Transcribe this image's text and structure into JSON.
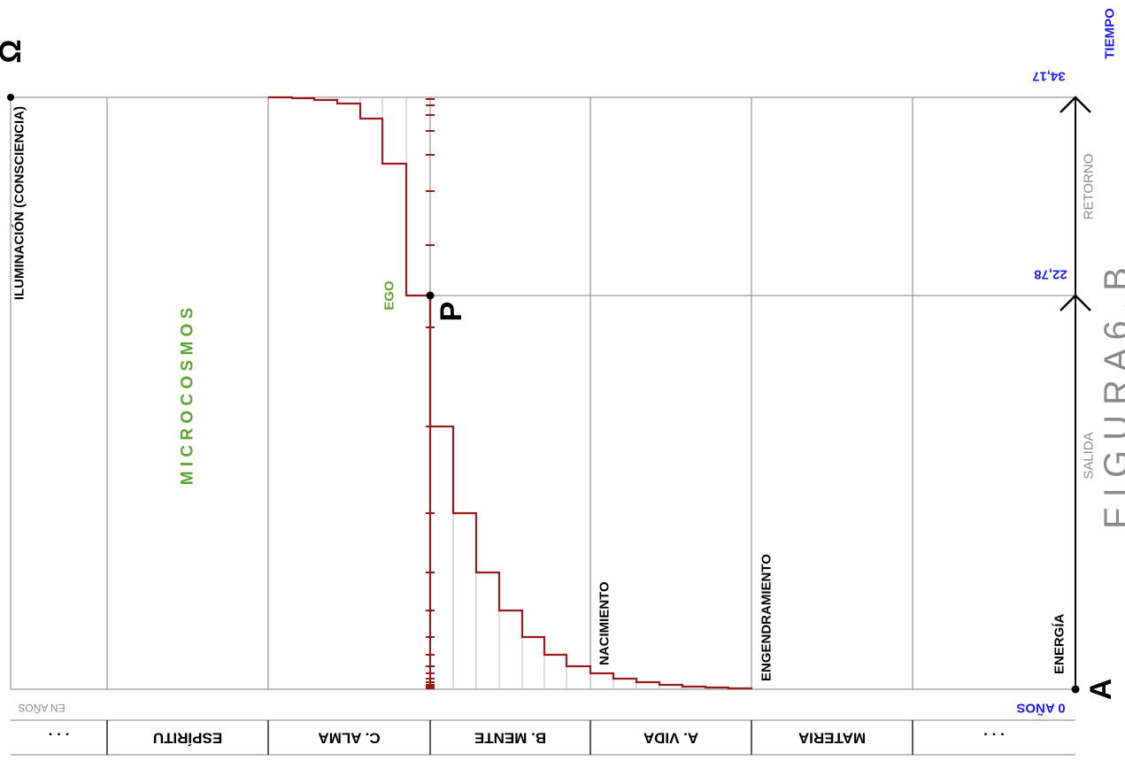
{
  "labels": {
    "omega": "Ω",
    "vertical_title": "ILUMINACIÓN (CONSCIENCIA)",
    "microcosmos": "M I C R O C O S M O S",
    "ego": "EGO",
    "p_point": "P",
    "nacimiento": "NACIMIENTO",
    "engendramiento": "ENGENDRAMIENTO",
    "energia": "ENERGÍA",
    "salida": "SALIDA",
    "retorno": "RETORNO",
    "tiempo": "TIEMPO",
    "val_top": "34,17",
    "val_mid": "22,78",
    "val_bottom": "0 AÑOS",
    "en_anos": "EN AÑOS",
    "a_point": "A",
    "figura": "F I G U R A   6 . B"
  },
  "bands": [
    {
      "label": ". . ."
    },
    {
      "label": "ESPÍRITU"
    },
    {
      "label": "C. ALMA"
    },
    {
      "label": "B. MENTE"
    },
    {
      "label": "A. VIDA"
    },
    {
      "label": "MATERIA"
    },
    {
      "label": ". . ."
    }
  ],
  "colors": {
    "curve": "#9b1b1b",
    "green": "#5aa832",
    "blue": "#1a1aff",
    "gray_text": "#8a8a8a",
    "grid": "#9a9a9a"
  }
}
